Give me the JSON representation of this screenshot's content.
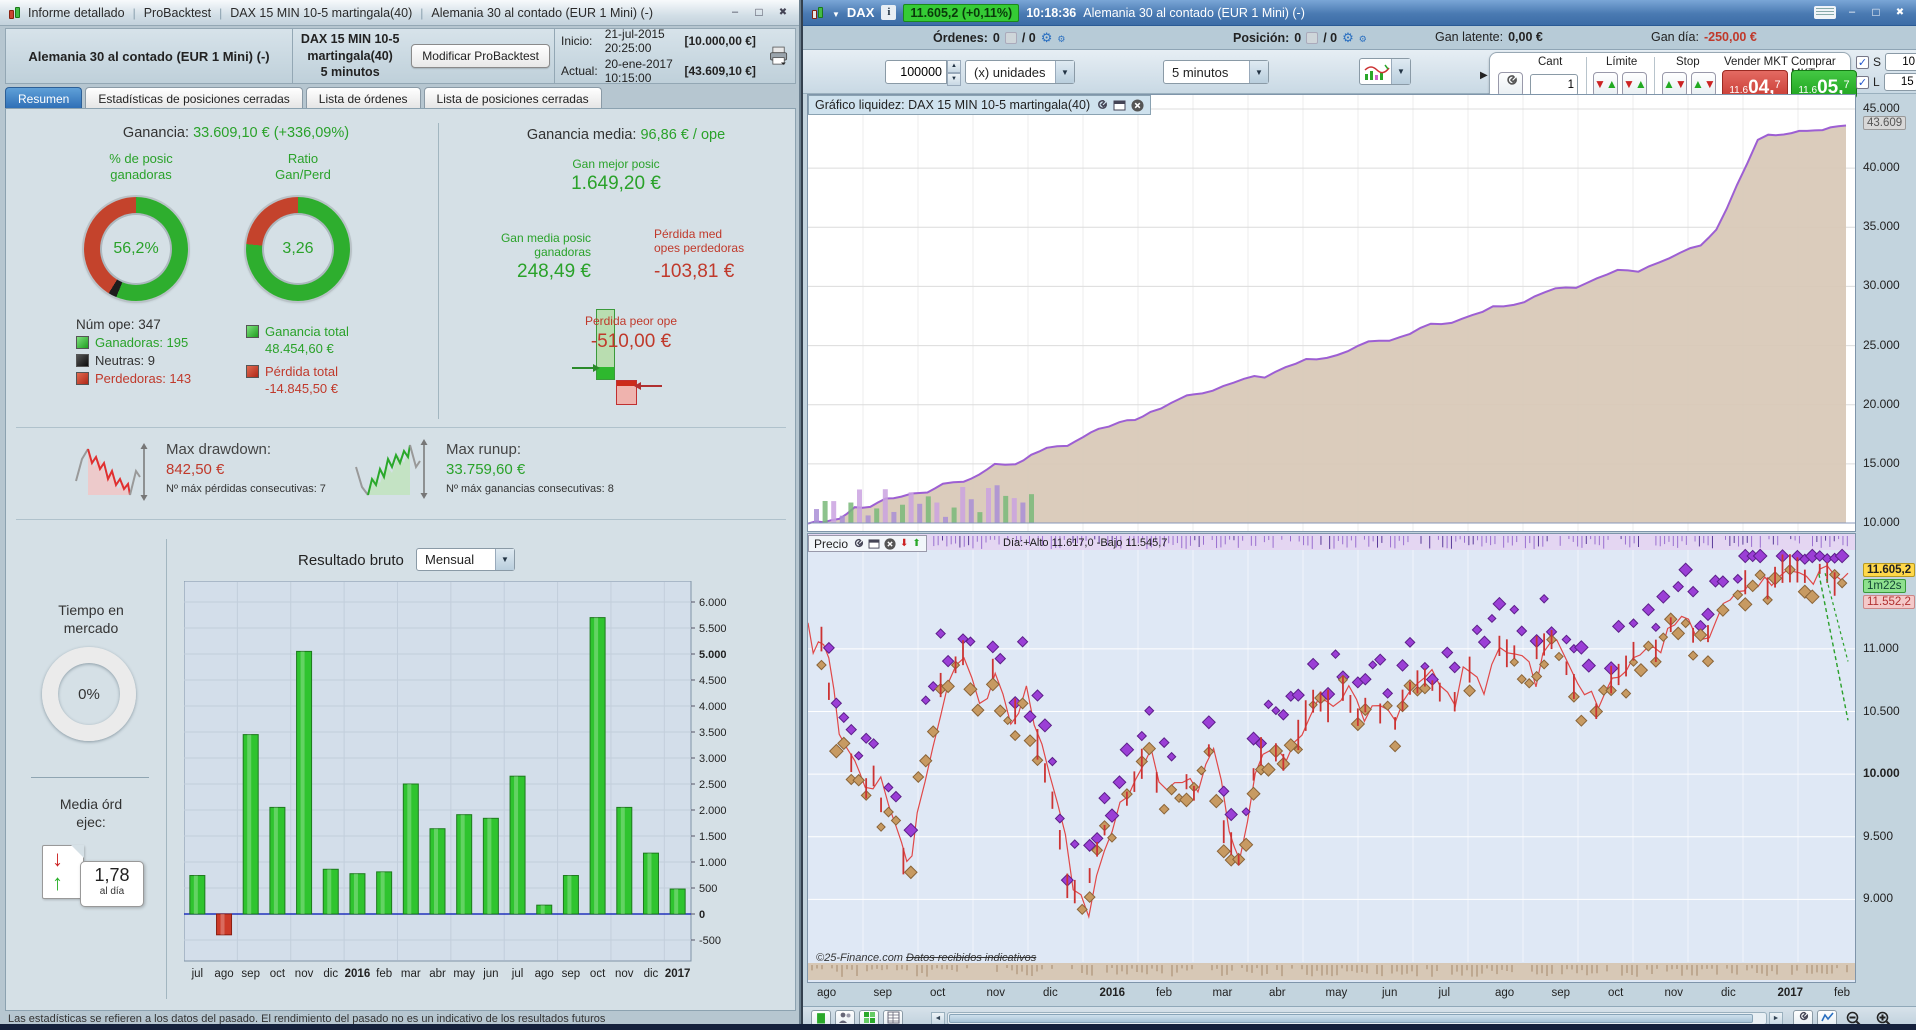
{
  "app": {
    "bottom_note": "Las estadísticas se refieren a los datos del pasado. El rendimiento del pasado no es un indicativo de los resultados futuros"
  },
  "left_window": {
    "title_segments": [
      "Informe detallado",
      "ProBacktest",
      "DAX 15 MIN 10-5 martingala(40)",
      "Alemania 30 al contado (EUR 1 Mini) (-)"
    ],
    "header": {
      "instrument": "Alemania 30 al contado (EUR 1 Mini) (-)",
      "strategy": "DAX 15 MIN 10-5 martingala(40)",
      "timeframe": "5 minutos",
      "modify_button": "Modificar ProBacktest",
      "inicio_label": "Inicio:",
      "inicio_datetime": "21-jul-2015 20:25:00",
      "inicio_capital": "[10.000,00 €]",
      "actual_label": "Actual:",
      "actual_datetime": "20-ene-2017 10:15:00",
      "actual_capital": "[43.609,10 €]"
    },
    "tabs": [
      {
        "label": "Resumen"
      },
      {
        "label": "Estadísticas de posiciones cerradas"
      },
      {
        "label": "Lista de órdenes"
      },
      {
        "label": "Lista de posiciones cerradas"
      }
    ],
    "summary": {
      "ganancia_label": "Ganancia:",
      "ganancia_value": "33.609,10 € (+336,09%)",
      "donut_win": {
        "label_line1": "% de posic",
        "label_line2": "ganadoras",
        "value": "56,2%",
        "win_pct": 56.2,
        "neutral_pct": 2.6,
        "loss_pct": 41.2
      },
      "donut_ratio": {
        "label_line1": "Ratio",
        "label_line2": "Gan/Perd",
        "value": "3,26",
        "win_pct": 76.5,
        "loss_pct": 23.5
      },
      "num_ope": "Núm ope: 347",
      "ganadoras": "Ganadoras: 195",
      "neutras": "Neutras: 9",
      "perdedoras": "Perdedoras: 143",
      "ganancia_total_label": "Ganancia total",
      "ganancia_total_value": "48.454,60 €",
      "perdida_total_label": "Pérdida total",
      "perdida_total_value": "-14.845,50 €",
      "media_label": "Ganancia media:",
      "media_value": "96,86 € / ope",
      "mejor_label": "Gan mejor posic",
      "mejor_value": "1.649,20 €",
      "media_gan_label1": "Gan media posic",
      "media_gan_label2": "ganadoras",
      "media_gan_value": "248,49 €",
      "media_perd_label1": "Pérdida med",
      "media_perd_label2": "opes perdedoras",
      "media_perd_value": "-103,81 €",
      "peor_label": "Perdida peor ope",
      "peor_value": "-510,00 €"
    },
    "risk": {
      "drawdown_label": "Max drawdown:",
      "drawdown_value": "842,50 €",
      "drawdown_note": "Nº máx pérdidas consecutivas: 7",
      "runup_label": "Max runup:",
      "runup_value": "33.759,60 €",
      "runup_note": "Nº máx ganancias consecutivas: 8"
    },
    "bottom": {
      "tiempo_label1": "Tiempo en",
      "tiempo_label2": "mercado",
      "tiempo_value": "0%",
      "media_ord_label1": "Media órd",
      "media_ord_label2": "ejec:",
      "media_ord_value": "1,78",
      "media_ord_unit": "al día",
      "resultado_label": "Resultado bruto",
      "periodo_select": "Mensual"
    }
  },
  "right_window": {
    "titlebar": {
      "symbol": "DAX",
      "quote_badge": "11.605,2 (+0,11%)",
      "time": "10:18:36",
      "instrument": "Alemania 30 al contado (EUR 1 Mini) (-)"
    },
    "inforow": {
      "ordenes_label": "Órdenes:",
      "ordenes_value": "0",
      "ordenes_value2": "/ 0",
      "posicion_label": "Posición:",
      "posicion_value": "0",
      "posicion_value2": "/ 0",
      "latente_label": "Gan latente:",
      "latente_value": "0,00 €",
      "dia_label": "Gan día:",
      "dia_value": "-250,00 €"
    },
    "toolbar": {
      "qty": "100000",
      "unit_option": "(x) unidades",
      "tf_option": "5 minutos",
      "cant_label": "Cant",
      "cant_value": "1",
      "limite_label": "Límite",
      "stop_label": "Stop",
      "sell_label": "Vender MKT",
      "sell_prefix": "11.6",
      "sell_main": "04,",
      "sell_sup": "7",
      "buy_label": "Comprar MKT",
      "buy_prefix": "11.6",
      "buy_main": "05,",
      "buy_sup": "7",
      "s_label": "S",
      "s_value": "10",
      "l_label": "L",
      "l_value": "15"
    },
    "equity_panel": {
      "title": "Gráfico liquidez: DAX 15 MIN 10-5 martingala(40)",
      "current_badge": "43.609"
    },
    "price_panel": {
      "title": "Precio",
      "day_info": "Día:+Alto 11.617,0 -Bajo 11.545,7",
      "last_badge": "11.605,2",
      "timer_badge": "1m22s",
      "low_badge": "11.552,2",
      "copyright": "©25-Finance.com",
      "disclaimer": "Datos recibidos indicativos"
    }
  },
  "chart_data": [
    {
      "id": "monthly_result",
      "type": "bar",
      "title": "Resultado bruto",
      "period": "Mensual",
      "categories": [
        "jul",
        "ago",
        "sep",
        "oct",
        "nov",
        "dic",
        "2016",
        "feb",
        "mar",
        "abr",
        "may",
        "jun",
        "jul",
        "ago",
        "sep",
        "oct",
        "nov",
        "dic",
        "2017"
      ],
      "values": [
        740,
        -400,
        3450,
        2050,
        5050,
        860,
        775,
        810,
        2500,
        1640,
        1910,
        1840,
        2650,
        170,
        740,
        5700,
        2050,
        1170,
        480
      ],
      "bold_categories": [
        "2016",
        "2017"
      ],
      "y_ticks": [
        6000,
        5500,
        5000,
        4500,
        4000,
        3500,
        3000,
        2500,
        2000,
        1500,
        1000,
        500,
        0,
        -500
      ],
      "y_tick_labels": [
        "6.000",
        "5.500",
        "5.000",
        "4.500",
        "4.000",
        "3.500",
        "3.000",
        "2.500",
        "2.000",
        "1.500",
        "1.000",
        "500",
        "0",
        "-500"
      ],
      "bold_tick_labels": [
        "5.000",
        "0"
      ],
      "ylim": [
        -750,
        6250
      ],
      "grid": true,
      "color_positive": "#2fc42f",
      "color_negative": "#cc3a28",
      "zero_line_color": "#2233bb"
    },
    {
      "id": "equity_curve",
      "type": "area",
      "title": "Gráfico liquidez: DAX 15 MIN 10-5 martingala(40)",
      "ylabel": "",
      "ylim": [
        10000,
        45000
      ],
      "y_ticks": [
        45000,
        40000,
        35000,
        30000,
        25000,
        20000,
        15000,
        10000
      ],
      "y_tick_labels": [
        "45.000",
        "40.000",
        "35.000",
        "30.000",
        "25.000",
        "20.000",
        "15.000",
        "10.000"
      ],
      "current_value": 43609,
      "current_label": "43.609",
      "line_color": "#9d5fd3",
      "fill_color": "#d8c8b6",
      "points": [
        [
          0,
          10000
        ],
        [
          0.015,
          10050
        ],
        [
          0.03,
          10400
        ],
        [
          0.045,
          11300
        ],
        [
          0.06,
          11350
        ],
        [
          0.075,
          12100
        ],
        [
          0.09,
          12150
        ],
        [
          0.1,
          12600
        ],
        [
          0.115,
          12650
        ],
        [
          0.13,
          13400
        ],
        [
          0.15,
          13450
        ],
        [
          0.165,
          14200
        ],
        [
          0.18,
          14900
        ],
        [
          0.2,
          14950
        ],
        [
          0.215,
          15700
        ],
        [
          0.23,
          16400
        ],
        [
          0.25,
          16450
        ],
        [
          0.265,
          17200
        ],
        [
          0.28,
          17900
        ],
        [
          0.3,
          18600
        ],
        [
          0.315,
          18650
        ],
        [
          0.33,
          19400
        ],
        [
          0.35,
          20100
        ],
        [
          0.365,
          20800
        ],
        [
          0.38,
          20850
        ],
        [
          0.4,
          21600
        ],
        [
          0.42,
          22300
        ],
        [
          0.44,
          22350
        ],
        [
          0.46,
          23100
        ],
        [
          0.48,
          23800
        ],
        [
          0.5,
          23850
        ],
        [
          0.52,
          24600
        ],
        [
          0.54,
          25300
        ],
        [
          0.56,
          25350
        ],
        [
          0.58,
          26100
        ],
        [
          0.6,
          26800
        ],
        [
          0.62,
          26850
        ],
        [
          0.64,
          27600
        ],
        [
          0.66,
          28300
        ],
        [
          0.68,
          28350
        ],
        [
          0.7,
          29100
        ],
        [
          0.72,
          29800
        ],
        [
          0.74,
          29850
        ],
        [
          0.76,
          30600
        ],
        [
          0.78,
          31300
        ],
        [
          0.8,
          31350
        ],
        [
          0.82,
          32100
        ],
        [
          0.84,
          32800
        ],
        [
          0.86,
          33500
        ],
        [
          0.875,
          34800
        ],
        [
          0.885,
          36500
        ],
        [
          0.895,
          38500
        ],
        [
          0.905,
          40500
        ],
        [
          0.915,
          42300
        ],
        [
          0.925,
          42800
        ],
        [
          0.94,
          42900
        ],
        [
          0.955,
          43100
        ],
        [
          0.97,
          43250
        ],
        [
          0.985,
          43400
        ],
        [
          1,
          43609
        ]
      ]
    },
    {
      "id": "price",
      "type": "line",
      "title": "Precio",
      "x_labels": [
        "ago",
        "sep",
        "oct",
        "nov",
        "dic",
        "2016",
        "feb",
        "mar",
        "abr",
        "may",
        "jun",
        "jul",
        "ago",
        "sep",
        "oct",
        "nov",
        "dic",
        "2017",
        "feb"
      ],
      "bold_x_labels": [
        "2016",
        "2017"
      ],
      "ylim": [
        8500,
        11790
      ],
      "y_ticks": [
        11000,
        10500,
        10000,
        9500,
        9000
      ],
      "y_tick_labels": [
        "11.000",
        "10.500",
        "10.000",
        "9.500",
        "9.000"
      ],
      "bold_tick_labels": [
        "10.000"
      ],
      "last_price": 11605.2,
      "day_high": 11617.0,
      "day_low": 11545.7,
      "line_color": "#e04848",
      "marker_colors": {
        "purple": "#9b3fd6",
        "tan": "#c79a62"
      },
      "points": [
        [
          0,
          11240
        ],
        [
          0.01,
          11120
        ],
        [
          0.02,
          10950
        ],
        [
          0.03,
          10350
        ],
        [
          0.045,
          10050
        ],
        [
          0.055,
          9850
        ],
        [
          0.07,
          10000
        ],
        [
          0.085,
          9550
        ],
        [
          0.095,
          9350
        ],
        [
          0.105,
          9650
        ],
        [
          0.12,
          10250
        ],
        [
          0.135,
          10750
        ],
        [
          0.15,
          10900
        ],
        [
          0.165,
          10550
        ],
        [
          0.18,
          10750
        ],
        [
          0.195,
          10400
        ],
        [
          0.21,
          10650
        ],
        [
          0.225,
          10200
        ],
        [
          0.24,
          9750
        ],
        [
          0.255,
          9300
        ],
        [
          0.27,
          8850
        ],
        [
          0.285,
          9450
        ],
        [
          0.3,
          9750
        ],
        [
          0.315,
          9950
        ],
        [
          0.33,
          10150
        ],
        [
          0.345,
          9850
        ],
        [
          0.36,
          10100
        ],
        [
          0.375,
          9900
        ],
        [
          0.39,
          10250
        ],
        [
          0.405,
          9600
        ],
        [
          0.415,
          9350
        ],
        [
          0.43,
          9950
        ],
        [
          0.445,
          10250
        ],
        [
          0.46,
          10150
        ],
        [
          0.475,
          10350
        ],
        [
          0.49,
          10550
        ],
        [
          0.505,
          10500
        ],
        [
          0.52,
          10700
        ],
        [
          0.535,
          10450
        ],
        [
          0.55,
          10600
        ],
        [
          0.565,
          10400
        ],
        [
          0.58,
          10650
        ],
        [
          0.6,
          10800
        ],
        [
          0.615,
          10600
        ],
        [
          0.63,
          10850
        ],
        [
          0.65,
          10700
        ],
        [
          0.665,
          10950
        ],
        [
          0.68,
          11000
        ],
        [
          0.7,
          10850
        ],
        [
          0.72,
          11050
        ],
        [
          0.74,
          10750
        ],
        [
          0.76,
          10550
        ],
        [
          0.78,
          10800
        ],
        [
          0.8,
          10950
        ],
        [
          0.82,
          11100
        ],
        [
          0.84,
          11250
        ],
        [
          0.86,
          11050
        ],
        [
          0.88,
          11300
        ],
        [
          0.9,
          11450
        ],
        [
          0.92,
          11520
        ],
        [
          0.94,
          11580
        ],
        [
          0.96,
          11540
        ],
        [
          0.98,
          11600
        ],
        [
          1,
          11605
        ]
      ]
    }
  ]
}
